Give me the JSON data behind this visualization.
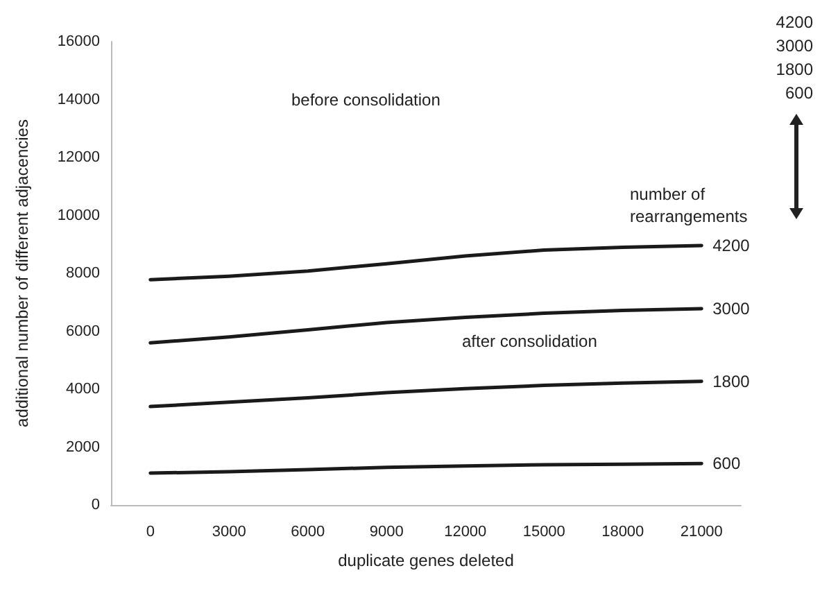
{
  "chart_data": {
    "type": "line",
    "xlabel": "duplicate genes deleted",
    "ylabel": "additional number of different adjacencies",
    "categories": [
      "0",
      "3000",
      "6000",
      "9000",
      "12000",
      "15000",
      "18000",
      "21000"
    ],
    "ylim": [
      0,
      16000
    ],
    "yticks": [
      0,
      2000,
      4000,
      6000,
      8000,
      10000,
      12000,
      14000,
      16000
    ],
    "series": [
      {
        "name": "600",
        "color": "#1a1a1a",
        "values": [
          1100,
          1150,
          1220,
          1300,
          1350,
          1390,
          1410,
          1430
        ]
      },
      {
        "name": "1800",
        "color": "#1a1a1a",
        "values": [
          3400,
          3550,
          3700,
          3880,
          4020,
          4130,
          4210,
          4270
        ]
      },
      {
        "name": "3000",
        "color": "#1a1a1a",
        "values": [
          5600,
          5800,
          6050,
          6300,
          6480,
          6620,
          6720,
          6780
        ]
      },
      {
        "name": "4200",
        "color": "#1a1a1a",
        "values": [
          7780,
          7900,
          8080,
          8330,
          8600,
          8800,
          8900,
          8960
        ]
      }
    ],
    "annotations": [
      "before consolidation",
      "after consolidation",
      "number of rearrangements",
      "4200",
      "3000",
      "1800",
      "600"
    ],
    "grid": false,
    "legend": false,
    "marker": "none",
    "line_style": "solid"
  }
}
